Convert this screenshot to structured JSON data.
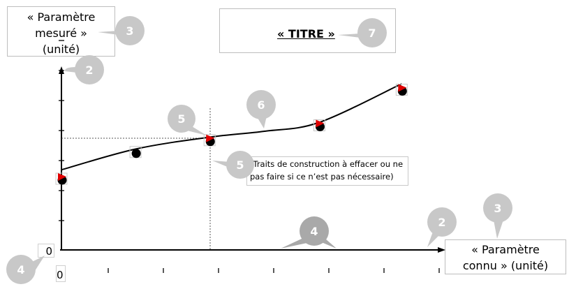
{
  "y_axis_label": {
    "line1": "« Paramètre",
    "line2": "mesuré »",
    "line3": "(unité)"
  },
  "x_axis_label": {
    "line1": "« Paramètre",
    "line2": "connu » (unité)"
  },
  "title": "« TITRE »",
  "note": {
    "line1": "(Traits de construction à effacer ou ne",
    "line2": "pas faire si ce n’est pas nécessaire)"
  },
  "origin_y": "0",
  "origin_x": "0",
  "callouts": [
    "2",
    "2",
    "3",
    "3",
    "4",
    "4",
    "5",
    "5",
    "6",
    "7"
  ],
  "colors": {
    "bubble": "#c8c8c8",
    "bubble_dark": "#a9a9a9",
    "marker_red": "#e00000",
    "marker_black": "#000000",
    "curve": "#000000"
  },
  "chart_data": {
    "type": "scatter",
    "title": "« TITRE »",
    "xlabel": "« Paramètre connu » (unité)",
    "ylabel": "« Paramètre mesuré » (unité)",
    "points": [
      {
        "x": 0,
        "y": 2.4
      },
      {
        "x": 1.35,
        "y": 3.3
      },
      {
        "x": 2.7,
        "y": 3.7
      },
      {
        "x": 4.7,
        "y": 4.2
      },
      {
        "x": 6.2,
        "y": 5.4
      }
    ],
    "curve": [
      {
        "x": 0,
        "y": 2.7
      },
      {
        "x": 1.35,
        "y": 3.4
      },
      {
        "x": 2.7,
        "y": 3.8
      },
      {
        "x": 3.7,
        "y": 4.0
      },
      {
        "x": 4.7,
        "y": 4.3
      },
      {
        "x": 6.2,
        "y": 5.6
      }
    ],
    "construction_lines": {
      "x": 2.7,
      "y": 3.7
    },
    "x_ticks": 7,
    "y_ticks": 7
  }
}
